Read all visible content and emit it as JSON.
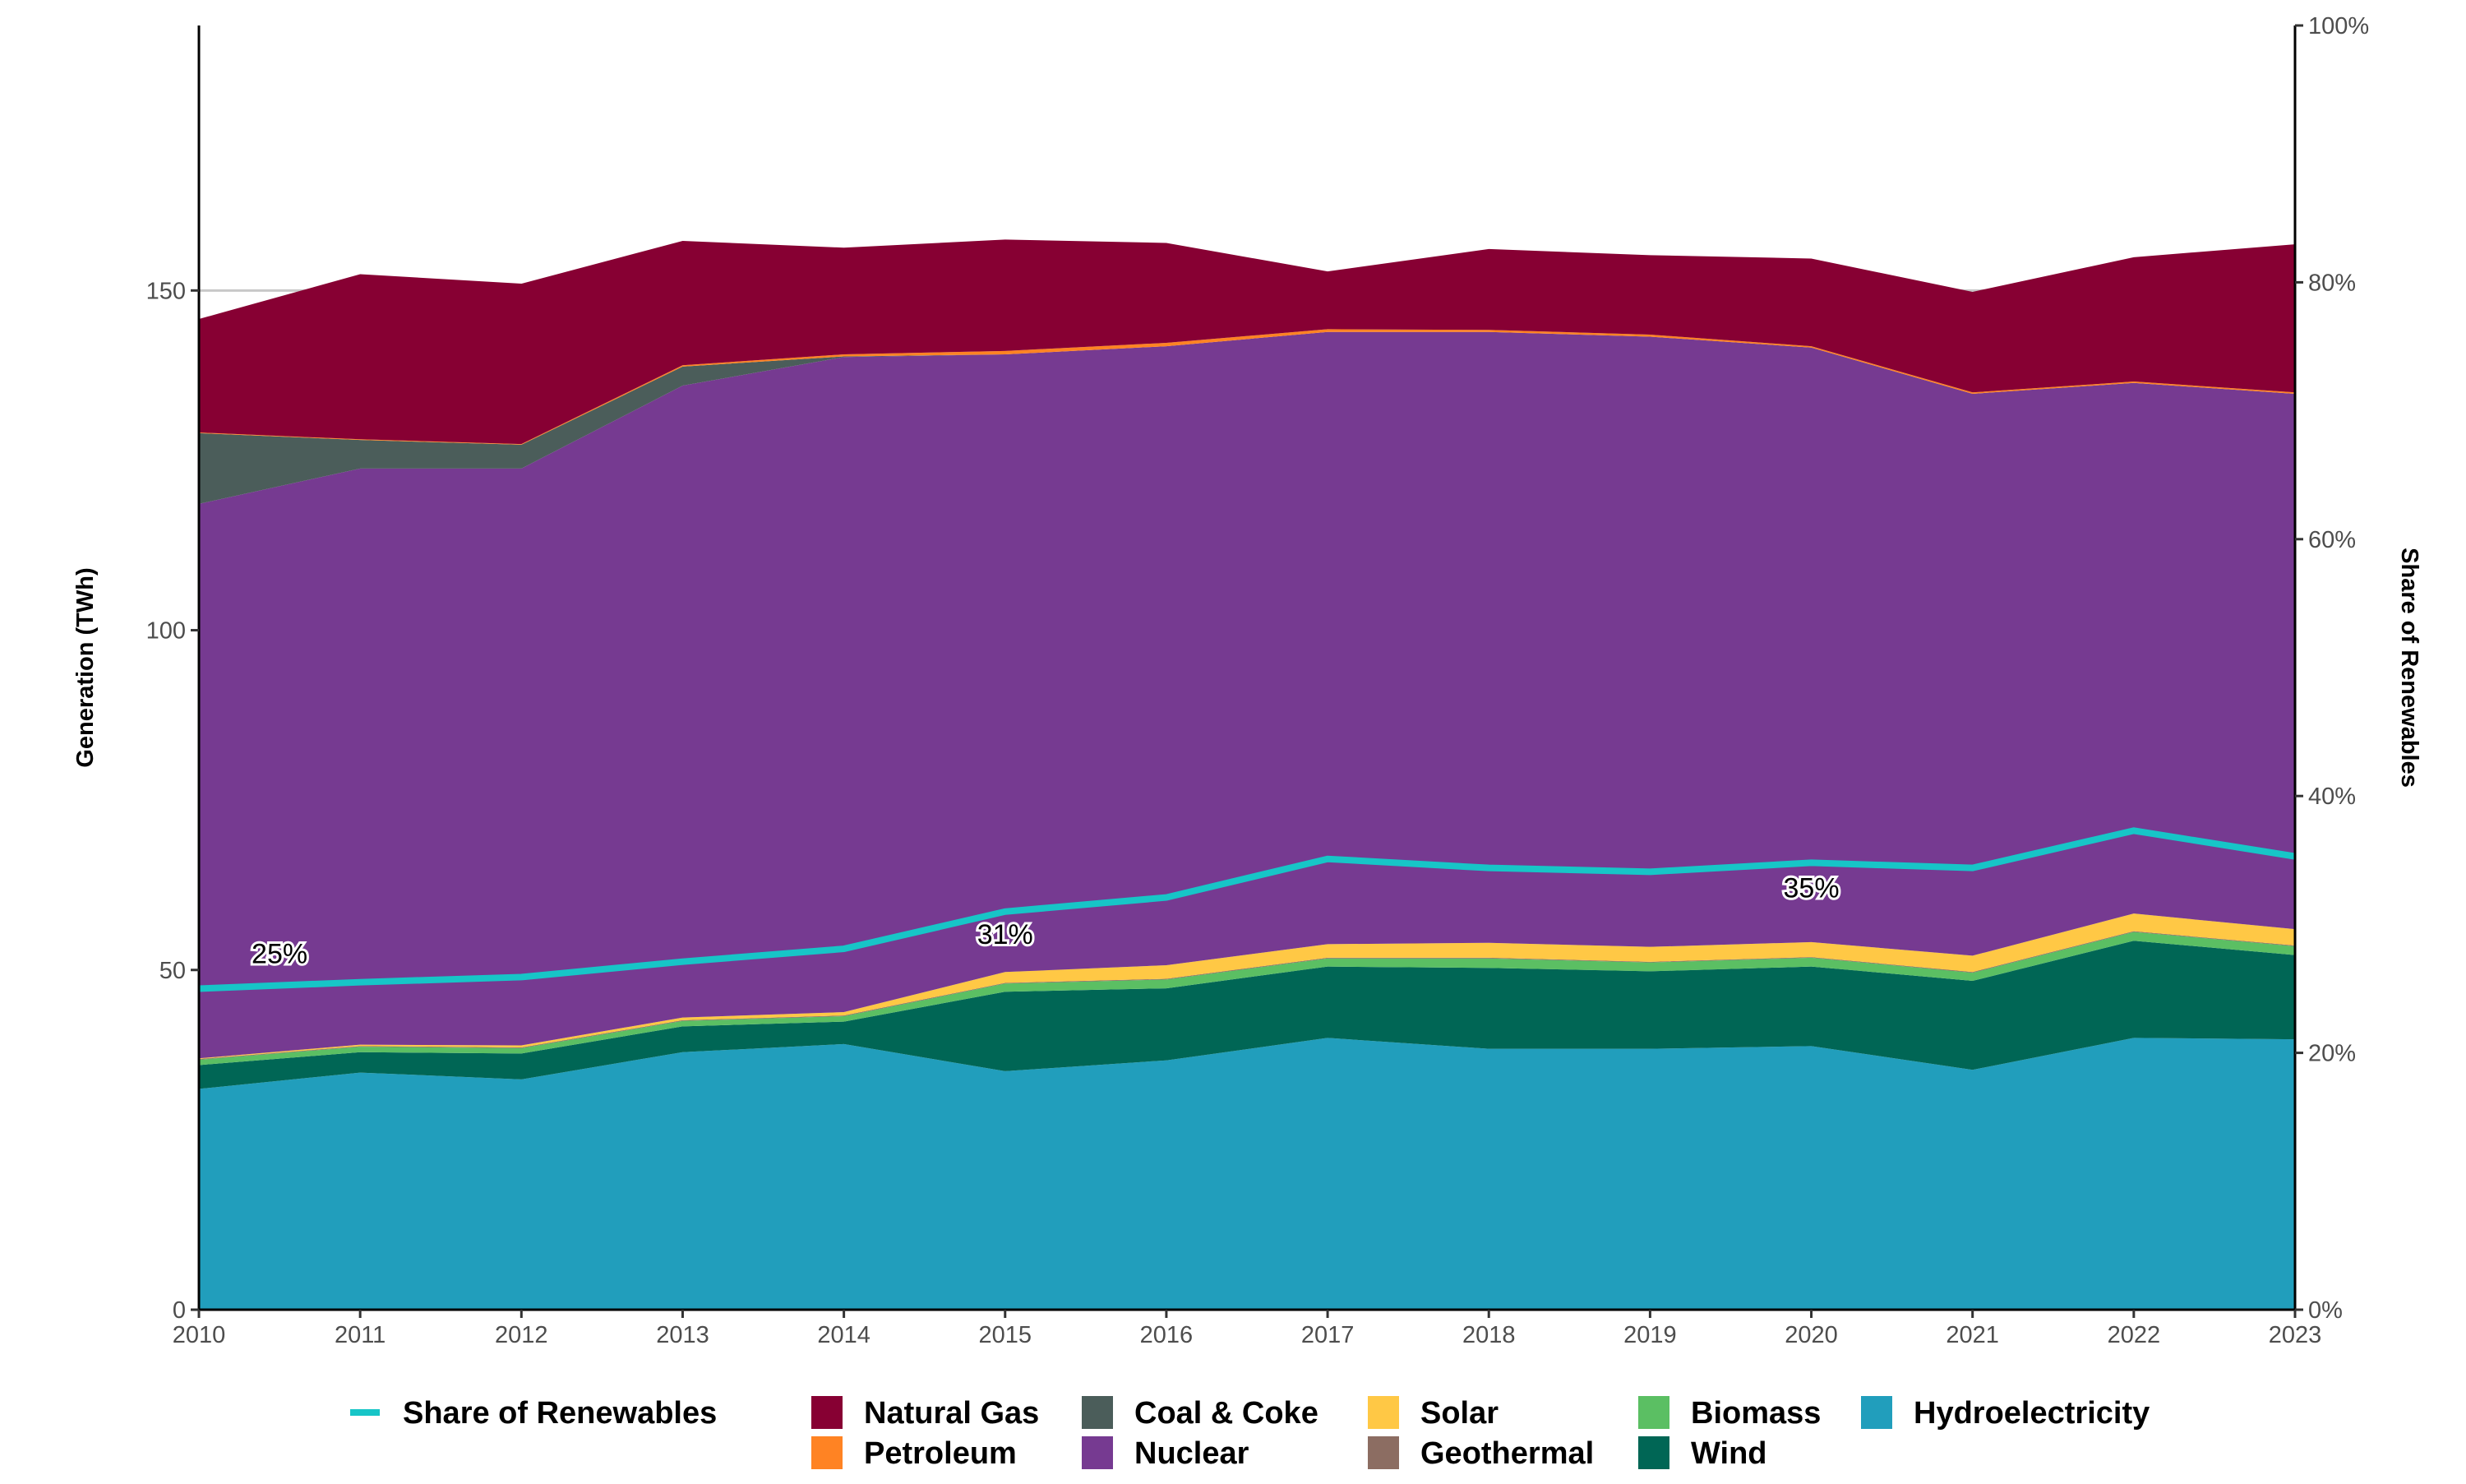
{
  "chart_data": {
    "type": "area",
    "stacked": true,
    "title": "",
    "xlabel": "",
    "ylabel": "Generation (TWh)",
    "y2label": "Share of Renewables",
    "x": [
      2010,
      2011,
      2012,
      2013,
      2014,
      2015,
      2016,
      2017,
      2018,
      2019,
      2020,
      2021,
      2022,
      2023
    ],
    "ylim": [
      0,
      189
    ],
    "yticks": [
      0,
      50,
      100,
      150
    ],
    "y2lim": [
      0,
      100
    ],
    "y2ticks": [
      "0%",
      "20%",
      "40%",
      "60%",
      "80%",
      "100%"
    ],
    "grid": "major y, light grey",
    "legend_position": "bottom",
    "series": [
      {
        "name": "Hydroelectricity",
        "color": "#219EBC",
        "values": [
          32.5,
          34.9,
          33.9,
          37.9,
          39.1,
          35.1,
          36.7,
          40.0,
          38.4,
          38.4,
          38.8,
          35.3,
          40.0,
          39.8
        ]
      },
      {
        "name": "Wind",
        "color": "#006655",
        "values": [
          3.5,
          3.0,
          3.8,
          3.8,
          3.3,
          11.7,
          10.6,
          10.5,
          11.9,
          11.4,
          11.7,
          13.1,
          14.3,
          12.4
        ]
      },
      {
        "name": "Biomass",
        "color": "#5BBF63",
        "values": [
          0.8,
          0.8,
          0.8,
          0.8,
          0.8,
          1.2,
          1.3,
          1.2,
          1.4,
          1.3,
          1.3,
          1.2,
          1.3,
          1.3
        ]
      },
      {
        "name": "Geothermal",
        "color": "#8C6D62",
        "values": [
          0.1,
          0.1,
          0.1,
          0.1,
          0.1,
          0.1,
          0.1,
          0.1,
          0.1,
          0.1,
          0.1,
          0.1,
          0.1,
          0.1
        ]
      },
      {
        "name": "Solar",
        "color": "#FFC845",
        "values": [
          0.1,
          0.2,
          0.3,
          0.4,
          0.5,
          1.6,
          2.0,
          2.0,
          2.2,
          2.2,
          2.2,
          2.4,
          2.6,
          2.4
        ]
      },
      {
        "name": "Nuclear",
        "color": "#763A91",
        "values": [
          81.6,
          84.8,
          84.9,
          93.0,
          96.4,
          90.9,
          91.1,
          90.1,
          89.9,
          89.8,
          87.5,
          82.7,
          78.1,
          78.8
        ]
      },
      {
        "name": "Coal & Coke",
        "color": "#4B5D5A",
        "values": [
          10.4,
          4.2,
          3.5,
          2.8,
          0.1,
          0,
          0,
          0,
          0,
          0,
          0,
          0,
          0,
          0
        ]
      },
      {
        "name": "Petroleum",
        "color": "#FF8323",
        "values": [
          0.1,
          0.1,
          0.1,
          0.2,
          0.3,
          0.5,
          0.5,
          0.4,
          0.3,
          0.3,
          0.2,
          0.2,
          0.2,
          0.2
        ]
      },
      {
        "name": "Natural Gas",
        "color": "#870033",
        "values": [
          16.7,
          24.3,
          23.6,
          18.3,
          15.7,
          16.4,
          14.7,
          8.5,
          11.9,
          11.7,
          12.9,
          14.8,
          18.3,
          21.8
        ]
      }
    ],
    "line": {
      "name": "Share of Renewables",
      "color": "#17C5C7",
      "axis": "right",
      "values": [
        25.0,
        25.5,
        25.9,
        27.1,
        28.1,
        31.0,
        32.1,
        35.1,
        34.4,
        34.1,
        34.8,
        34.4,
        37.3,
        35.3
      ]
    },
    "annotations": [
      {
        "text": "25%",
        "x": 2010.5,
        "y": 27
      },
      {
        "text": "31%",
        "x": 2015,
        "y": 28.5
      },
      {
        "text": "35%",
        "x": 2020,
        "y": 32.1
      }
    ],
    "legend": {
      "rows": [
        [
          "Share of Renewables",
          "Natural Gas",
          "Coal & Coke",
          "Solar",
          "Biomass",
          "Hydroelectricity"
        ],
        [
          "Petroleum",
          "Nuclear",
          "Geothermal",
          "Wind"
        ]
      ]
    }
  }
}
